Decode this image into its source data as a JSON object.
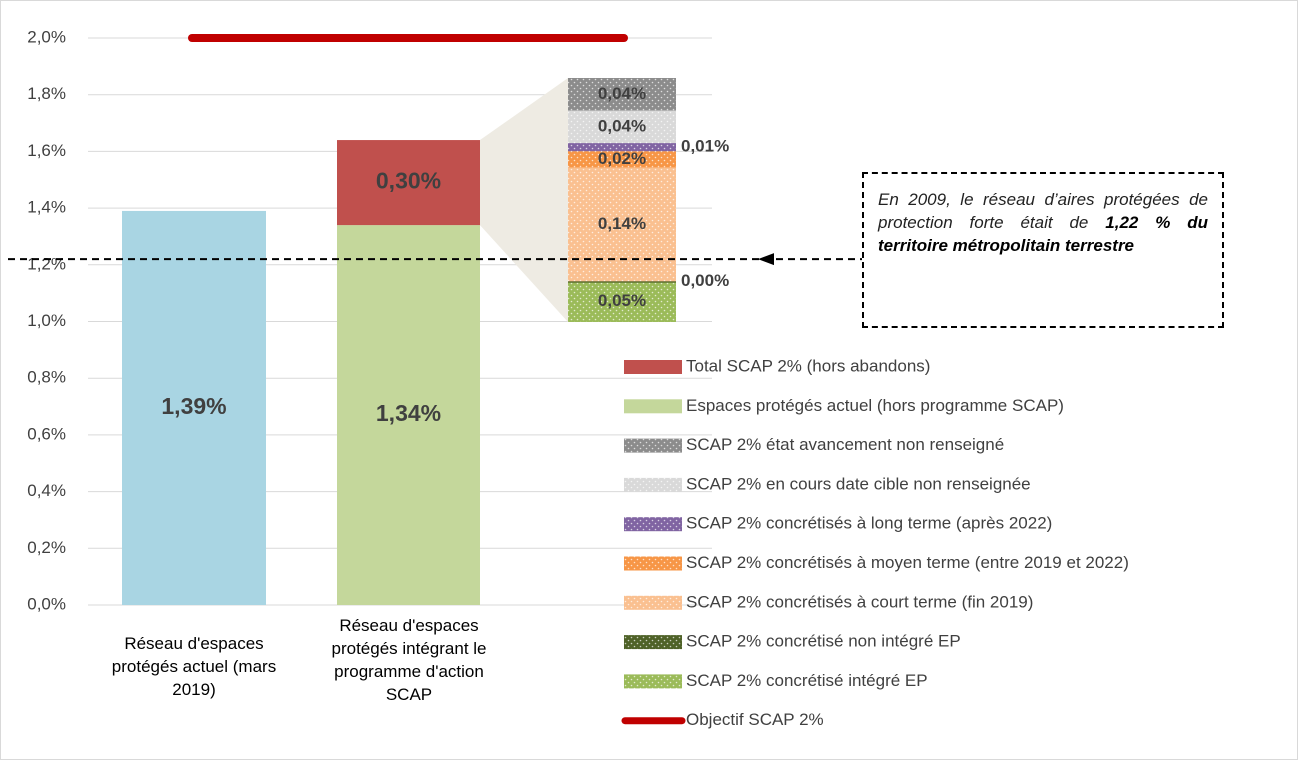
{
  "chart_data": {
    "type": "bar",
    "categories": [
      "Réseau d'espaces protégés actuel (mars 2019)",
      "Réseau d'espaces protégés intégrant le programme d'action SCAP"
    ],
    "base_bar": {
      "color": "#a9d5e3",
      "values": [
        1.39,
        null
      ],
      "value_labels": [
        "1,39%",
        null
      ]
    },
    "series": [
      {
        "name": "Total SCAP 2% (hors abandons)",
        "color": "#c0504d",
        "values": [
          null,
          0.3
        ],
        "value_labels": [
          null,
          "0,30%"
        ]
      },
      {
        "name": "Espaces protégés actuel (hors programme SCAP)",
        "color": "#c4d79b",
        "values": [
          null,
          1.34
        ],
        "value_labels": [
          null,
          "1,34%"
        ]
      }
    ],
    "breakdown": [
      {
        "name": "SCAP 2% état avancement non renseigné",
        "color": "#8c8c8c",
        "value": 0.04,
        "value_label": "0,04%"
      },
      {
        "name": "SCAP 2% en cours date cible non renseignée",
        "color": "#d9d9d9",
        "value": 0.04,
        "value_label": "0,04%"
      },
      {
        "name": "SCAP 2% concrétisés à long terme (après 2022)",
        "color": "#8064a2",
        "value": 0.01,
        "value_label": "0,01%"
      },
      {
        "name": "SCAP 2% concrétisés à moyen terme (entre 2019 et 2022)",
        "color": "#f79646",
        "value": 0.02,
        "value_label": "0,02%"
      },
      {
        "name": "SCAP 2% concrétisés à court terme (fin 2019)",
        "color": "#fac090",
        "value": 0.14,
        "value_label": "0,14%"
      },
      {
        "name": "SCAP 2% concrétisé non intégré EP",
        "color": "#4f6228",
        "value": 0.0,
        "value_label": "0,00%"
      },
      {
        "name": "SCAP 2% concrétisé intégré EP",
        "color": "#9bbb59",
        "value": 0.05,
        "value_label": "0,05%"
      }
    ],
    "target": {
      "name": "Objectif SCAP 2%",
      "value": 2.0,
      "color": "#c00000"
    },
    "reference_line": {
      "value": 1.22
    },
    "annotation": {
      "text": "En 2009, le réseau d’aires protégées de protection forte était de ",
      "emphasis": "1,22 % du territoire métropolitain terrestre"
    },
    "ylim": [
      0,
      2.0
    ],
    "yticks": [
      {
        "value": 0,
        "label": "0,0%"
      },
      {
        "value": 0.2,
        "label": "0,2%"
      },
      {
        "value": 0.4,
        "label": "0,4%"
      },
      {
        "value": 0.6,
        "label": "0,6%"
      },
      {
        "value": 0.8,
        "label": "0,8%"
      },
      {
        "value": 1.0,
        "label": "1,0%"
      },
      {
        "value": 1.2,
        "label": "1,2%"
      },
      {
        "value": 1.4,
        "label": "1,4%"
      },
      {
        "value": 1.6,
        "label": "1,6%"
      },
      {
        "value": 1.8,
        "label": "1,8%"
      },
      {
        "value": 2.0,
        "label": "2,0%"
      }
    ],
    "grid": true
  }
}
